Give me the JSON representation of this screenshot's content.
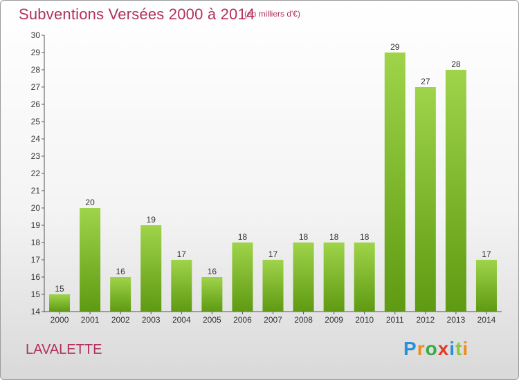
{
  "title": "Subventions Versées 2000 à 2014",
  "subtitle": "(en milliers d'€)",
  "commune": "LAVALETTE",
  "logo": {
    "letters": [
      "P",
      "r",
      "o",
      "x",
      "i",
      "t",
      "i"
    ],
    "colors": [
      "#2a8fd6",
      "#f08a1c",
      "#3aa845",
      "#e03a2a",
      "#2a8fd6",
      "#8cc63f",
      "#f08a1c"
    ]
  },
  "chart_data": {
    "type": "bar",
    "categories": [
      "2000",
      "2001",
      "2002",
      "2003",
      "2004",
      "2005",
      "2006",
      "2007",
      "2008",
      "2009",
      "2010",
      "2011",
      "2012",
      "2013",
      "2014"
    ],
    "values": [
      15,
      20,
      16,
      19,
      17,
      16,
      18,
      17,
      18,
      18,
      18,
      29,
      27,
      28,
      17
    ],
    "title": "Subventions Versées 2000 à 2014",
    "ylim": [
      14,
      30
    ],
    "yticks": [
      14,
      15,
      16,
      17,
      18,
      19,
      20,
      21,
      22,
      23,
      24,
      25,
      26,
      27,
      28,
      29,
      30
    ],
    "grid": false,
    "bar_color_top": "#9fd44a",
    "bar_color_bottom": "#5e9a12"
  }
}
